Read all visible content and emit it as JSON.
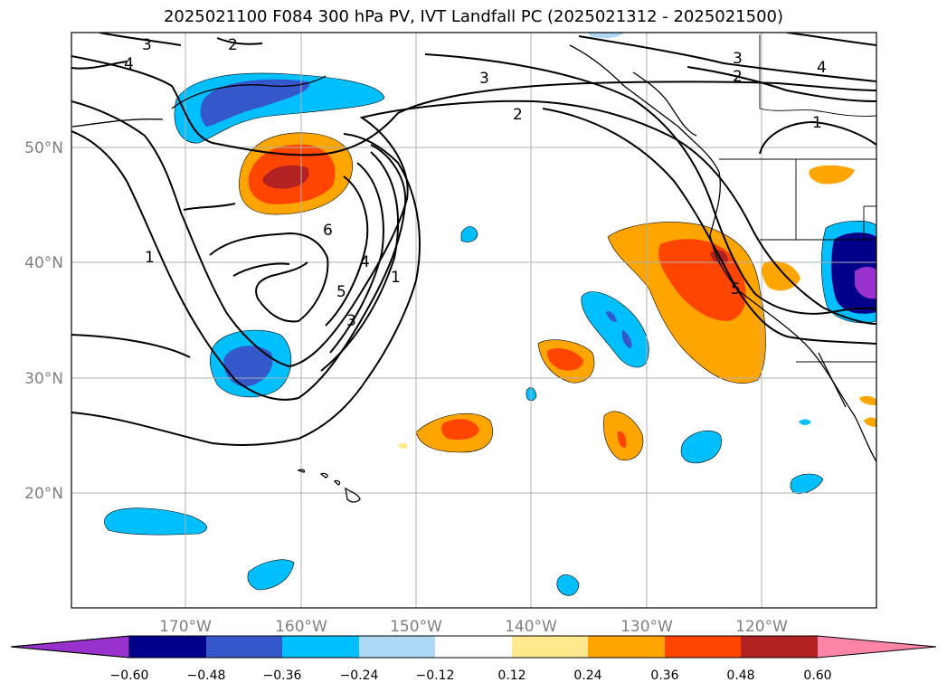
{
  "title": "2025021100 F084 300 hPa PV, IVT Landfall PC (2025021312 - 2025021500)",
  "lat_labels": [
    "50°N",
    "40°N",
    "30°N",
    "20°N"
  ],
  "lon_labels": [
    "170°W",
    "160°W",
    "150°W",
    "140°W",
    "130°W",
    "120°W"
  ],
  "colorbar": {
    "ticks": [
      "−0.60",
      "−0.48",
      "−0.36",
      "−0.24",
      "−0.12",
      "0.12",
      "0.24",
      "0.36",
      "0.48",
      "0.60"
    ],
    "colors": {
      "below_min": "#9932cc",
      "b1": "#00008b",
      "b2": "#3457cc",
      "b3": "#00bfff",
      "b4": "#add8f6",
      "b5": "#ffffff",
      "b6": "#ffe98c",
      "b7": "#ffa500",
      "b8": "#ff4500",
      "b9": "#b22222",
      "above_max": "#ff85a7"
    }
  },
  "contour_labels": [
    "3",
    "2",
    "4",
    "3",
    "2",
    "3",
    "2",
    "4",
    "1",
    "1",
    "6",
    "5",
    "4",
    "3",
    "1",
    "5"
  ]
}
